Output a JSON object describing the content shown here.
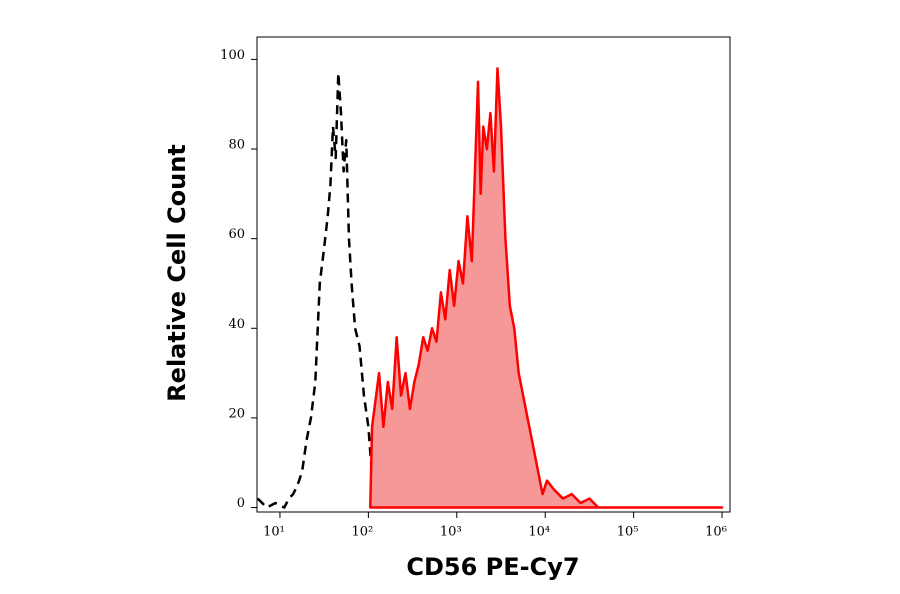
{
  "chart_data": {
    "type": "histogram-overlay",
    "x_label": "CD56 PE-Cy7",
    "y_label": "Relative Cell Count",
    "x_log": true,
    "xlim": [
      5.5,
      1230000
    ],
    "xticks": [
      {
        "value": 10,
        "label": "10¹"
      },
      {
        "value": 100,
        "label": "10²"
      },
      {
        "value": 1000,
        "label": "10³"
      },
      {
        "value": 10000,
        "label": "10⁴"
      },
      {
        "value": 100000,
        "label": "10⁵"
      },
      {
        "value": 1000000,
        "label": "10⁶"
      }
    ],
    "ylim": [
      -1,
      105
    ],
    "yticks": [
      0,
      20,
      40,
      60,
      80,
      100
    ],
    "series": [
      {
        "color": "#000000",
        "linestyle": "dashed",
        "x": [
          5.6,
          7.1,
          8.9,
          11.2,
          12.6,
          14.1,
          15.8,
          17.8,
          20,
          22.4,
          25.1,
          28.2,
          31.6,
          34.7,
          37.2,
          39.8,
          42.7,
          45.7,
          49,
          52.5,
          56.2,
          60.3,
          64.6,
          70.8,
          79.4,
          89.1,
          100,
          112,
          126
        ],
        "values": [
          2,
          0,
          1,
          0,
          2,
          3,
          5,
          8,
          15,
          20,
          28,
          50,
          58,
          65,
          72,
          85,
          78,
          97,
          88,
          75,
          82,
          60,
          50,
          40,
          36,
          25,
          18,
          5,
          0
        ]
      },
      {
        "color": "#ff0000",
        "fill": "#f79898",
        "linestyle": "solid",
        "x": [
          105,
          110,
          117,
          132,
          148,
          166,
          186,
          209,
          234,
          263,
          295,
          331,
          372,
          417,
          468,
          525,
          589,
          661,
          741,
          832,
          933,
          1047,
          1175,
          1318,
          1479,
          1585,
          1738,
          1862,
          1995,
          2188,
          2399,
          2630,
          2884,
          3162,
          3548,
          3981,
          4467,
          5012,
          5623,
          6310,
          7079,
          8318,
          9333,
          10471,
          12589,
          15849,
          19953,
          25119,
          31623,
          39811,
          1000000
        ],
        "values": [
          0,
          18,
          22,
          30,
          18,
          28,
          22,
          38,
          25,
          30,
          22,
          28,
          32,
          38,
          35,
          40,
          37,
          48,
          42,
          53,
          45,
          55,
          50,
          65,
          55,
          72,
          95,
          70,
          85,
          80,
          88,
          75,
          98,
          85,
          60,
          45,
          40,
          30,
          25,
          20,
          15,
          8,
          3,
          6,
          4,
          2,
          3,
          1,
          2,
          0,
          0
        ]
      }
    ]
  }
}
